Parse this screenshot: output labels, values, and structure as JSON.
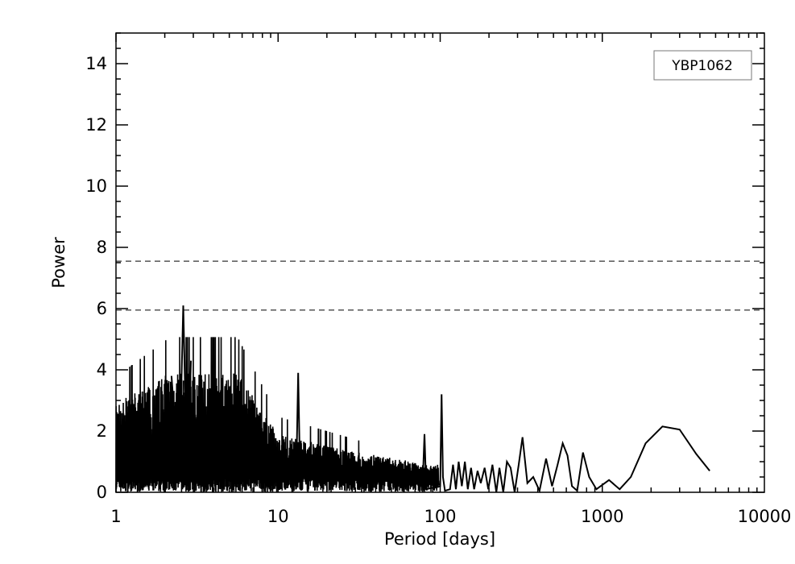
{
  "chart_data": {
    "type": "line",
    "title": "",
    "xlabel": "Period [days]",
    "ylabel": "Power",
    "xscale": "log",
    "xlim": [
      1,
      10000
    ],
    "ylim": [
      0,
      15
    ],
    "x_tick_values": [
      1,
      10,
      100,
      1000,
      10000
    ],
    "x_tick_labels": [
      "1",
      "10",
      "100",
      "1000",
      "10000"
    ],
    "y_tick_values": [
      0,
      2,
      4,
      6,
      8,
      10,
      12,
      14
    ],
    "y_tick_labels": [
      "0",
      "2",
      "4",
      "6",
      "8",
      "10",
      "12",
      "14"
    ],
    "grid": false,
    "legend": {
      "label": "YBP1062",
      "placement": "top-right"
    },
    "thresholds": [
      7.55,
      5.95
    ],
    "line_color": "#000000",
    "series": [
      {
        "points": [
          [
            2.2,
            3.8
          ],
          [
            2.45,
            0.3
          ],
          [
            2.6,
            6.1
          ],
          [
            2.75,
            0.2
          ],
          [
            2.9,
            4.3
          ],
          [
            12.9,
            0.1
          ],
          [
            13.3,
            3.9
          ],
          [
            13.7,
            0.2
          ],
          [
            78.0,
            0.3
          ],
          [
            80.0,
            1.9
          ],
          [
            82.0,
            0.1
          ],
          [
            100.0,
            0.2
          ],
          [
            102.0,
            3.2
          ],
          [
            104.0,
            0.5
          ],
          [
            107.0,
            0.05
          ],
          [
            115.0,
            0.1
          ],
          [
            120.0,
            0.9
          ],
          [
            125.0,
            0.1
          ],
          [
            130.0,
            1.0
          ],
          [
            136.0,
            0.2
          ],
          [
            142.0,
            1.0
          ],
          [
            148.0,
            0.1
          ],
          [
            155.0,
            0.8
          ],
          [
            162.0,
            0.1
          ],
          [
            170.0,
            0.7
          ],
          [
            178.0,
            0.3
          ],
          [
            188.0,
            0.8
          ],
          [
            198.0,
            0.1
          ],
          [
            210.0,
            0.9
          ],
          [
            222.0,
            0.0
          ],
          [
            232.0,
            0.8
          ],
          [
            245.0,
            0.0
          ],
          [
            258.0,
            1.0
          ],
          [
            272.0,
            0.8
          ],
          [
            288.0,
            0.0
          ],
          [
            305.0,
            0.9
          ],
          [
            322.0,
            1.8
          ],
          [
            345.0,
            0.3
          ],
          [
            375.0,
            0.5
          ],
          [
            410.0,
            0.05
          ],
          [
            450.0,
            1.1
          ],
          [
            490.0,
            0.2
          ],
          [
            530.0,
            0.9
          ],
          [
            570.0,
            1.6
          ],
          [
            610.0,
            1.2
          ],
          [
            650.0,
            0.2
          ],
          [
            700.0,
            0.05
          ],
          [
            760.0,
            1.3
          ],
          [
            830.0,
            0.5
          ],
          [
            920.0,
            0.1
          ],
          [
            1100.0,
            0.4
          ],
          [
            1280.0,
            0.1
          ],
          [
            1500.0,
            0.5
          ],
          [
            1850.0,
            1.6
          ],
          [
            2350.0,
            2.15
          ],
          [
            3000.0,
            2.05
          ],
          [
            3800.0,
            1.25
          ],
          [
            4600.0,
            0.7
          ]
        ]
      }
    ]
  }
}
